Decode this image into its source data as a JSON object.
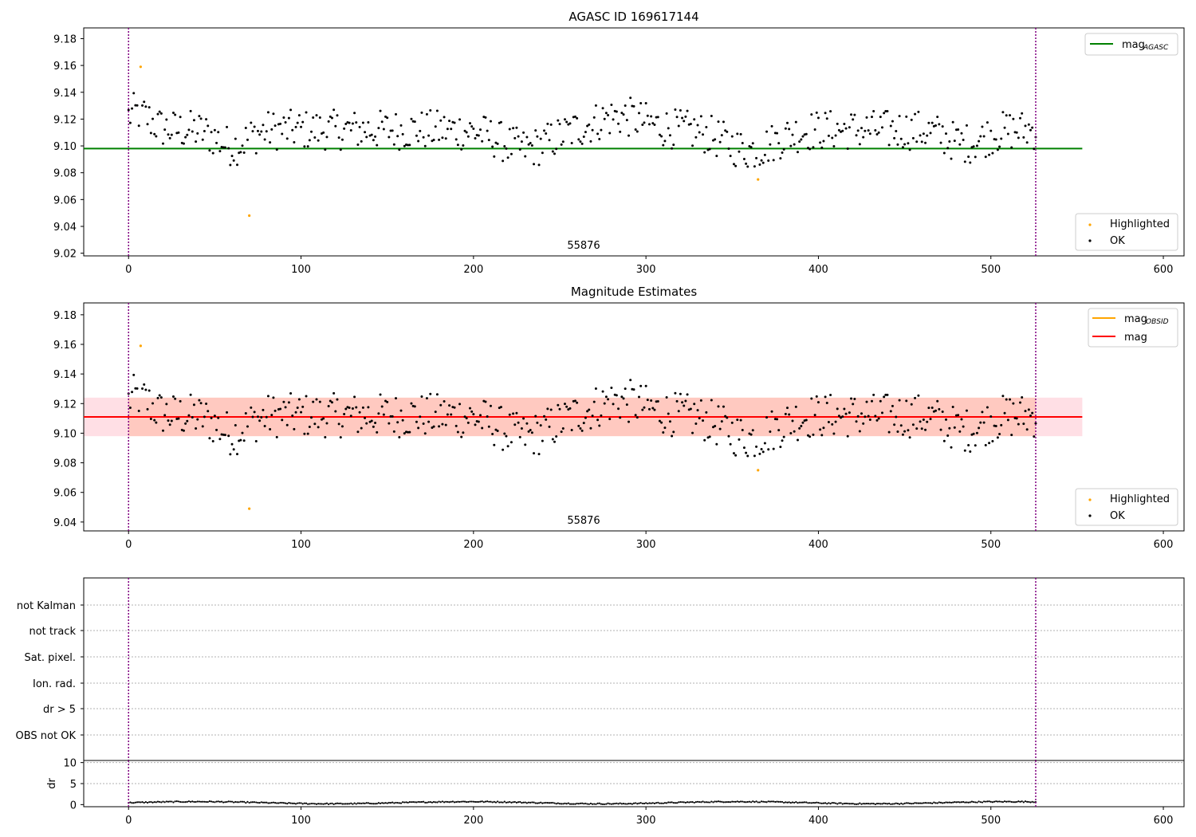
{
  "chart_data": [
    {
      "type": "scatter",
      "title": "AGASC ID 169617144",
      "xlim": [
        -26,
        612
      ],
      "ylim": [
        9.018,
        9.188
      ],
      "xticks": [
        0,
        100,
        200,
        300,
        400,
        500,
        600
      ],
      "yticks": [
        9.02,
        9.04,
        9.06,
        9.08,
        9.1,
        9.12,
        9.14,
        9.16,
        9.18
      ],
      "ytick_labels": [
        "9.02",
        "9.04",
        "9.06",
        "9.08",
        "9.10",
        "9.12",
        "9.14",
        "9.16",
        "9.18"
      ],
      "vertical_lines": [
        0,
        526
      ],
      "hlines": [
        {
          "name": "mag_AGASC",
          "y": 9.098,
          "x0": -26,
          "x1": 553,
          "color": "#008000"
        }
      ],
      "annotation": {
        "text": "55876",
        "x": 263
      },
      "legend_upper": [
        {
          "label": "mag",
          "sub": "AGASC",
          "color": "#008000"
        }
      ],
      "legend_lower": [
        {
          "label": "Highlighted",
          "color": "#ffa500"
        },
        {
          "label": "OK",
          "color": "#000000"
        }
      ],
      "highlighted": [
        [
          7,
          9.159
        ],
        [
          70,
          9.048
        ],
        [
          365,
          9.075
        ]
      ]
    },
    {
      "type": "scatter",
      "title": "Magnitude Estimates",
      "xlim": [
        -26,
        612
      ],
      "ylim": [
        9.034,
        9.188
      ],
      "xticks": [
        0,
        100,
        200,
        300,
        400,
        500,
        600
      ],
      "yticks": [
        9.04,
        9.06,
        9.08,
        9.1,
        9.12,
        9.14,
        9.16,
        9.18
      ],
      "ytick_labels": [
        "9.04",
        "9.06",
        "9.08",
        "9.10",
        "9.12",
        "9.14",
        "9.16",
        "9.18"
      ],
      "vertical_lines": [
        0,
        526
      ],
      "band": {
        "y0": 9.098,
        "y1": 9.124,
        "x0": -26,
        "x1": 553
      },
      "inner_band": {
        "x0": 0,
        "x1": 526
      },
      "hlines": [
        {
          "name": "mag",
          "y": 9.111,
          "x0": -26,
          "x1": 553,
          "color": "#ff0000"
        }
      ],
      "annotation": {
        "text": "55876",
        "x": 263
      },
      "legend_upper": [
        {
          "label": "mag",
          "sub": "OBSID",
          "color": "#ffa500"
        },
        {
          "label": "mag",
          "sub": "",
          "color": "#ff0000"
        }
      ],
      "legend_lower": [
        {
          "label": "Highlighted",
          "color": "#ffa500"
        },
        {
          "label": "OK",
          "color": "#000000"
        }
      ],
      "highlighted": [
        [
          7,
          9.159
        ],
        [
          70,
          9.049
        ],
        [
          365,
          9.075
        ]
      ]
    },
    {
      "type": "table",
      "flag_labels": [
        "not Kalman",
        "not track",
        "Sat. pixel.",
        "Ion. rad.",
        "dr > 5",
        "OBS not OK"
      ],
      "vertical_lines": [
        0,
        526
      ]
    },
    {
      "type": "scatter",
      "ylabel": "dr",
      "xlim": [
        -26,
        612
      ],
      "ylim": [
        -0.5,
        10.5
      ],
      "xticks": [
        0,
        100,
        200,
        300,
        400,
        500,
        600
      ],
      "yticks": [
        0,
        5,
        10
      ],
      "ytick_labels": [
        "0",
        "5",
        "10"
      ],
      "vertical_lines": [
        0,
        526
      ]
    }
  ]
}
